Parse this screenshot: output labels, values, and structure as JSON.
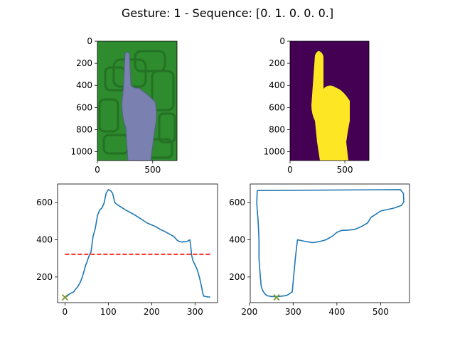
{
  "suptitle": "Gesture: 1 -   Sequence: [0. 1. 0. 0. 0.]",
  "colors": {
    "line": "#1f77b4",
    "threshold": "#ff0000",
    "marker": "#7a9a2a",
    "mask_bg": "#440154",
    "mask_fg": "#fde725",
    "photo_bg": "#2e8b2e",
    "hand": "#7a80b0"
  },
  "images": [
    {
      "name": "photo",
      "x_ticks": [
        "0",
        "500"
      ],
      "y_ticks": [
        "0",
        "200",
        "400",
        "600",
        "800",
        "1000"
      ],
      "width_units": 720,
      "height_units": 1080
    },
    {
      "name": "mask",
      "x_ticks": [
        "0",
        "500"
      ],
      "y_ticks": [
        "0",
        "200",
        "400",
        "600",
        "800",
        "1000"
      ],
      "width_units": 720,
      "height_units": 1080
    }
  ],
  "chart_data": [
    {
      "type": "line",
      "title": "",
      "xlabel": "",
      "ylabel": "",
      "xlim": [
        -17,
        352
      ],
      "ylim": [
        62,
        700
      ],
      "x_ticks": [
        0,
        100,
        200,
        300
      ],
      "y_ticks": [
        200,
        400,
        600
      ],
      "series": [
        {
          "x": [
            0,
            5,
            10,
            15,
            20,
            25,
            30,
            35,
            40,
            45,
            48,
            50,
            52,
            55,
            60,
            65,
            70,
            75,
            80,
            85,
            90,
            95,
            100,
            105,
            110,
            115,
            120,
            130,
            140,
            150,
            160,
            170,
            180,
            190,
            200,
            210,
            220,
            225,
            230,
            240,
            250,
            260,
            265,
            270,
            280,
            285,
            288,
            290,
            292,
            295,
            300,
            305,
            310,
            315,
            318,
            320,
            325,
            330,
            335
          ],
          "y": [
            90,
            97,
            108,
            114,
            120,
            135,
            150,
            170,
            200,
            240,
            265,
            275,
            290,
            310,
            335,
            420,
            460,
            530,
            560,
            570,
            595,
            650,
            670,
            665,
            650,
            600,
            590,
            575,
            560,
            548,
            535,
            520,
            505,
            490,
            480,
            470,
            455,
            450,
            445,
            432,
            420,
            395,
            390,
            388,
            390,
            395,
            400,
            370,
            320,
            290,
            265,
            240,
            200,
            150,
            110,
            97,
            95,
            93,
            92
          ]
        }
      ],
      "threshold": {
        "y": 322,
        "x": [
          0,
          335
        ]
      },
      "marker": {
        "x": 0,
        "y": 90
      }
    },
    {
      "type": "line",
      "title": "",
      "xlabel": "",
      "ylabel": "",
      "xlim": [
        202,
        566
      ],
      "ylim": [
        62,
        700
      ],
      "x_ticks": [
        200,
        300,
        400,
        500
      ],
      "y_ticks": [
        200,
        400,
        600
      ],
      "series": [
        {
          "x": [
            218,
            545,
            552,
            553,
            548,
            530,
            500,
            478,
            470,
            455,
            440,
            425,
            410,
            400,
            390,
            375,
            360,
            345,
            330,
            310,
            308,
            305,
            298,
            285,
            265,
            250,
            240,
            235,
            230,
            227,
            225,
            222,
            222,
            220,
            218,
            217,
            218
          ],
          "y": [
            665,
            670,
            650,
            605,
            585,
            570,
            555,
            520,
            490,
            470,
            455,
            452,
            450,
            440,
            420,
            400,
            390,
            385,
            390,
            400,
            360,
            300,
            120,
            100,
            95,
            95,
            100,
            110,
            130,
            150,
            200,
            300,
            400,
            500,
            560,
            600,
            665
          ]
        }
      ],
      "marker": {
        "x": 262,
        "y": 90
      }
    }
  ]
}
